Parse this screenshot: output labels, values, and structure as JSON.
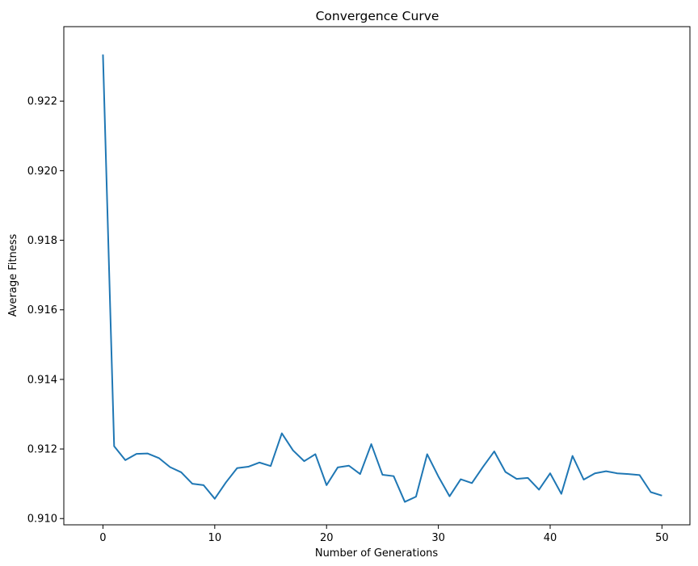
{
  "chart_data": {
    "type": "line",
    "title": "Convergence Curve",
    "xlabel": "Number of Generations",
    "ylabel": "Average Fitness",
    "xlim": [
      -3.5,
      52.5
    ],
    "ylim": [
      0.90982,
      0.92414
    ],
    "xticks": [
      0,
      10,
      20,
      30,
      40,
      50
    ],
    "yticks": [
      0.91,
      0.912,
      0.914,
      0.916,
      0.918,
      0.92,
      0.922
    ],
    "ytick_labels": [
      "0.910",
      "0.912",
      "0.914",
      "0.916",
      "0.918",
      "0.920",
      "0.922"
    ],
    "grid": false,
    "series": [
      {
        "color": "#1f77b4",
        "x": [
          0,
          1,
          2,
          3,
          4,
          5,
          6,
          7,
          8,
          9,
          10,
          11,
          12,
          13,
          14,
          15,
          16,
          17,
          18,
          19,
          20,
          21,
          22,
          23,
          24,
          25,
          26,
          27,
          28,
          29,
          30,
          31,
          32,
          33,
          34,
          35,
          36,
          37,
          38,
          39,
          40,
          41,
          42,
          43,
          44,
          45,
          46,
          47,
          48,
          49,
          50
        ],
        "y": [
          0.92334,
          0.91208,
          0.91168,
          0.91186,
          0.91187,
          0.91174,
          0.91148,
          0.91133,
          0.911,
          0.91096,
          0.91057,
          0.91104,
          0.91145,
          0.91149,
          0.91161,
          0.91151,
          0.91245,
          0.91196,
          0.91165,
          0.91185,
          0.91096,
          0.91147,
          0.91152,
          0.91128,
          0.91214,
          0.91126,
          0.91122,
          0.91048,
          0.91063,
          0.91185,
          0.91121,
          0.91064,
          0.91113,
          0.91102,
          0.91149,
          0.91193,
          0.91134,
          0.91114,
          0.91117,
          0.91083,
          0.9113,
          0.91071,
          0.9118,
          0.91112,
          0.9113,
          0.91136,
          0.9113,
          0.91128,
          0.91125,
          0.91076,
          0.91066
        ]
      }
    ]
  }
}
